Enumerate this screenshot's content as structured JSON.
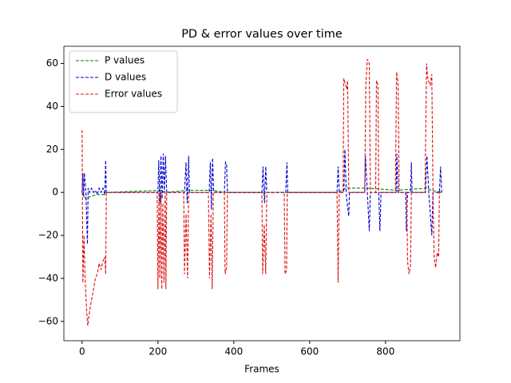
{
  "chart_data": {
    "type": "line",
    "title": "PD & error values over time",
    "xlabel": "Frames",
    "xlim": [
      -48,
      996
    ],
    "ylim": [
      -69,
      68
    ],
    "xticks": [
      0,
      200,
      400,
      600,
      800
    ],
    "yticks": [
      {
        "value": -60,
        "label": "−60"
      },
      {
        "value": -40,
        "label": "−40"
      },
      {
        "value": -20,
        "label": "−20"
      },
      0,
      20,
      40,
      60
    ],
    "legend": "upper left",
    "series": [
      {
        "name": "P values",
        "color": "#008000",
        "x": [
          0,
          10,
          20,
          40,
          60,
          64,
          210,
          215,
          280,
          340,
          380,
          480,
          540,
          675,
          695,
          750,
          830,
          910,
          920,
          950
        ],
        "values": [
          0,
          -3,
          -2,
          -1,
          -1,
          0,
          1,
          0,
          1,
          1,
          0,
          0,
          0,
          0,
          2,
          2,
          1,
          2,
          1,
          0
        ]
      },
      {
        "name": "D values",
        "color": "#0000cc",
        "x": [
          0,
          2,
          4,
          6,
          10,
          14,
          16,
          20,
          25,
          30,
          35,
          40,
          45,
          50,
          55,
          60,
          62,
          64,
          200,
          202,
          205,
          208,
          211,
          214,
          217,
          220,
          223,
          270,
          274,
          277,
          281,
          283,
          335,
          338,
          341,
          344,
          347,
          375,
          378,
          381,
          383,
          474,
          477,
          481,
          484,
          487,
          537,
          540,
          542,
          672,
          675,
          678,
          690,
          693,
          697,
          703,
          705,
          745,
          747,
          752,
          757,
          760,
          782,
          785,
          788,
          828,
          830,
          833,
          853,
          855,
          858,
          866,
          868,
          870,
          905,
          909,
          914,
          922,
          925,
          942,
          945,
          948
        ],
        "values": [
          0,
          9,
          -2,
          9,
          0,
          -24,
          2,
          0,
          2,
          0,
          1,
          -1,
          2,
          0,
          2,
          -1,
          15,
          0,
          0,
          15,
          -5,
          17,
          -3,
          18,
          0,
          17,
          0,
          0,
          14,
          -5,
          17,
          0,
          0,
          14,
          -8,
          16,
          0,
          0,
          14,
          13,
          0,
          0,
          12,
          -5,
          12,
          0,
          0,
          14,
          0,
          0,
          12,
          0,
          0,
          20,
          -2,
          -11,
          0,
          0,
          17,
          0,
          -18,
          0,
          0,
          -18,
          0,
          0,
          18,
          0,
          0,
          -18,
          0,
          0,
          14,
          0,
          0,
          17,
          0,
          -20,
          0,
          0,
          12,
          0
        ]
      },
      {
        "name": "Error values",
        "color": "#dd1111",
        "x": [
          0,
          2,
          5,
          8,
          12,
          15,
          20,
          25,
          30,
          35,
          40,
          45,
          50,
          55,
          60,
          62,
          64,
          198,
          200,
          203,
          205,
          208,
          210,
          213,
          216,
          219,
          221,
          223,
          268,
          270,
          274,
          278,
          281,
          333,
          336,
          340,
          343,
          346,
          375,
          377,
          381,
          383,
          474,
          476,
          480,
          484,
          487,
          533,
          535,
          539,
          541,
          672,
          675,
          678,
          688,
          690,
          695,
          698,
          700,
          703,
          745,
          748,
          752,
          757,
          760,
          774,
          776,
          780,
          782,
          826,
          829,
          833,
          836,
          856,
          858,
          862,
          866,
          868,
          904,
          908,
          912,
          918,
          922,
          925,
          928,
          932,
          936,
          940,
          942,
          950
        ],
        "values": [
          29,
          -42,
          -20,
          -40,
          -55,
          -62,
          -55,
          -50,
          -45,
          -40,
          -38,
          -33,
          -36,
          -32,
          -30,
          -38,
          0,
          0,
          -45,
          0,
          -40,
          0,
          -45,
          -5,
          -42,
          0,
          -45,
          0,
          0,
          -38,
          -10,
          -40,
          0,
          0,
          -40,
          -10,
          -45,
          0,
          0,
          -38,
          -35,
          0,
          0,
          -38,
          -15,
          -38,
          0,
          0,
          -38,
          -36,
          0,
          0,
          -42,
          0,
          0,
          53,
          50,
          48,
          52,
          0,
          0,
          50,
          62,
          60,
          0,
          0,
          52,
          50,
          0,
          0,
          56,
          50,
          0,
          0,
          -32,
          -38,
          -34,
          0,
          0,
          60,
          52,
          50,
          55,
          0,
          -30,
          -35,
          -28,
          -30,
          0,
          0
        ]
      }
    ]
  }
}
